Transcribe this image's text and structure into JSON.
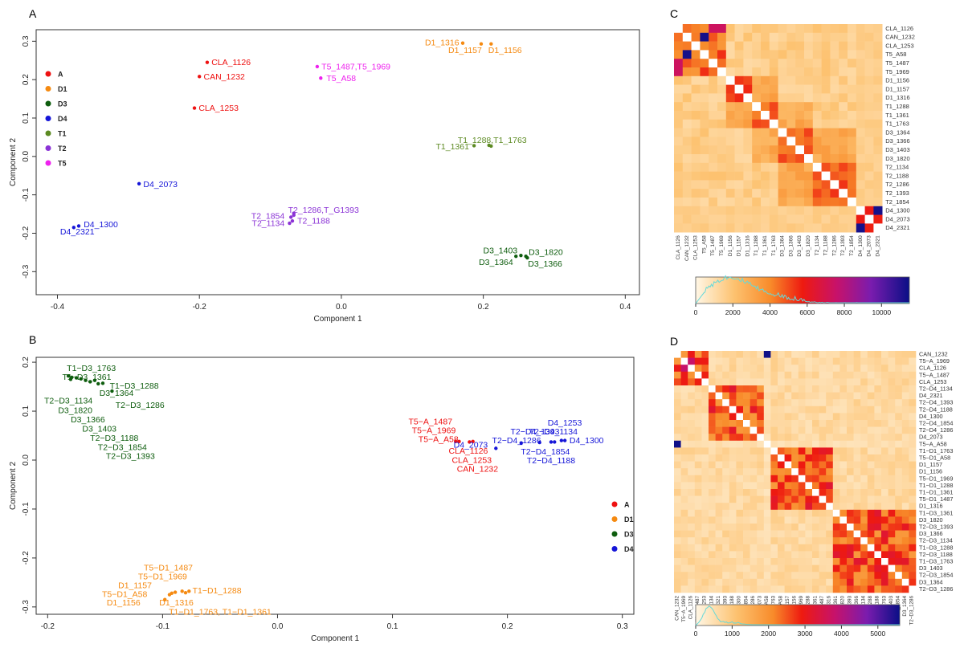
{
  "colors": {
    "A": "#ee1111",
    "D1": "#f58a11",
    "D3": "#0e5d0e",
    "D4": "#1515d8",
    "T1": "#5c8a22",
    "T2": "#8b33d6",
    "T5": "#ee22ee"
  },
  "chart_data": [
    {
      "panel": "A",
      "type": "scatter",
      "xlabel": "Component 1",
      "ylabel": "Component 2",
      "xlim": [
        -0.43,
        0.42
      ],
      "ylim": [
        -0.36,
        0.33
      ],
      "xticks": [
        -0.4,
        -0.2,
        0.0,
        0.2,
        0.4
      ],
      "yticks": [
        -0.3,
        -0.2,
        -0.1,
        0.0,
        0.1,
        0.2,
        0.3
      ],
      "legend": {
        "placement": "top-left",
        "entries": [
          "A",
          "D1",
          "D3",
          "D4",
          "T1",
          "T2",
          "T5"
        ]
      },
      "points": [
        {
          "g": "A",
          "x": -0.189,
          "y": 0.245
        },
        {
          "g": "A",
          "x": -0.2,
          "y": 0.208
        },
        {
          "g": "A",
          "x": -0.207,
          "y": 0.126
        },
        {
          "g": "D1",
          "x": 0.171,
          "y": 0.295
        },
        {
          "g": "D1",
          "x": 0.197,
          "y": 0.293
        },
        {
          "g": "D1",
          "x": 0.211,
          "y": 0.293
        },
        {
          "g": "T5",
          "x": -0.034,
          "y": 0.234
        },
        {
          "g": "T5",
          "x": -0.029,
          "y": 0.204
        },
        {
          "g": "T1",
          "x": 0.187,
          "y": 0.028
        },
        {
          "g": "T1",
          "x": 0.208,
          "y": 0.029
        },
        {
          "g": "T1",
          "x": 0.211,
          "y": 0.027
        },
        {
          "g": "D4",
          "x": -0.285,
          "y": -0.071
        },
        {
          "g": "D4",
          "x": -0.37,
          "y": -0.181
        },
        {
          "g": "D4",
          "x": -0.377,
          "y": -0.185
        },
        {
          "g": "T2",
          "x": -0.067,
          "y": -0.153
        },
        {
          "g": "T2",
          "x": -0.071,
          "y": -0.158
        },
        {
          "g": "T2",
          "x": -0.069,
          "y": -0.168
        },
        {
          "g": "T2",
          "x": -0.073,
          "y": -0.174
        },
        {
          "g": "T2",
          "x": -0.067,
          "y": -0.148
        },
        {
          "g": "D3",
          "x": 0.246,
          "y": -0.26
        },
        {
          "g": "D3",
          "x": 0.253,
          "y": -0.258
        },
        {
          "g": "D3",
          "x": 0.26,
          "y": -0.26
        },
        {
          "g": "D3",
          "x": 0.262,
          "y": -0.264
        }
      ],
      "labels": [
        {
          "g": "A",
          "x": -0.183,
          "y": 0.245,
          "text": "CLA_1126",
          "anchor": "start"
        },
        {
          "g": "A",
          "x": -0.194,
          "y": 0.208,
          "text": "CAN_1232",
          "anchor": "start"
        },
        {
          "g": "A",
          "x": -0.201,
          "y": 0.126,
          "text": "CLA_1253",
          "anchor": "start"
        },
        {
          "g": "D1",
          "x": 0.166,
          "y": 0.297,
          "text": "D1_1316",
          "anchor": "end"
        },
        {
          "g": "D1",
          "x": 0.198,
          "y": 0.277,
          "text": "D1_1157",
          "anchor": "end"
        },
        {
          "g": "D1",
          "x": 0.207,
          "y": 0.277,
          "text": "D1_1156",
          "anchor": "start"
        },
        {
          "g": "T5",
          "x": -0.028,
          "y": 0.234,
          "text": "T5_1487,T5_1969",
          "anchor": "start"
        },
        {
          "g": "T5",
          "x": -0.021,
          "y": 0.204,
          "text": "T5_A58",
          "anchor": "start"
        },
        {
          "g": "T1",
          "x": 0.164,
          "y": 0.043,
          "text": "T1_1288,T1_1763",
          "anchor": "start"
        },
        {
          "g": "T1",
          "x": 0.18,
          "y": 0.026,
          "text": "T1_1361",
          "anchor": "end"
        },
        {
          "g": "D4",
          "x": -0.279,
          "y": -0.072,
          "text": "D4_2073",
          "anchor": "start"
        },
        {
          "g": "D4",
          "x": -0.363,
          "y": -0.177,
          "text": "D4_1300",
          "anchor": "start"
        },
        {
          "g": "D4",
          "x": -0.372,
          "y": -0.196,
          "text": "D4_2321",
          "anchor": "middle"
        },
        {
          "g": "T2",
          "x": -0.075,
          "y": -0.139,
          "text": "T2_1286,T_G1393",
          "anchor": "start"
        },
        {
          "g": "T2",
          "x": -0.08,
          "y": -0.155,
          "text": "T2_1854",
          "anchor": "end"
        },
        {
          "g": "T2",
          "x": -0.08,
          "y": -0.174,
          "text": "T2_1134",
          "anchor": "end"
        },
        {
          "g": "T2",
          "x": -0.062,
          "y": -0.168,
          "text": "T2_1188",
          "anchor": "start"
        },
        {
          "g": "D3",
          "x": 0.224,
          "y": -0.245,
          "text": "D3_1403",
          "anchor": "middle"
        },
        {
          "g": "D3",
          "x": 0.264,
          "y": -0.249,
          "text": "D3_1820",
          "anchor": "start"
        },
        {
          "g": "D3",
          "x": 0.242,
          "y": -0.275,
          "text": "D3_1364",
          "anchor": "end"
        },
        {
          "g": "D3",
          "x": 0.263,
          "y": -0.28,
          "text": "D3_1366",
          "anchor": "start"
        }
      ]
    },
    {
      "panel": "B",
      "type": "scatter",
      "xlabel": "Component 1",
      "ylabel": "Component 2",
      "xlim": [
        -0.21,
        0.31
      ],
      "ylim": [
        -0.315,
        0.21
      ],
      "xticks": [
        -0.2,
        -0.1,
        0.0,
        0.1,
        0.2,
        0.3
      ],
      "yticks": [
        -0.3,
        -0.2,
        -0.1,
        0.0,
        0.1,
        0.2
      ],
      "legend": {
        "placement": "bottom-right",
        "entries": [
          "A",
          "D1",
          "D3",
          "D4"
        ]
      },
      "points": [
        {
          "g": "D3",
          "x": -0.182,
          "y": 0.172
        },
        {
          "g": "D3",
          "x": -0.179,
          "y": 0.169
        },
        {
          "g": "D3",
          "x": -0.175,
          "y": 0.168
        },
        {
          "g": "D3",
          "x": -0.171,
          "y": 0.166
        },
        {
          "g": "D3",
          "x": -0.167,
          "y": 0.163
        },
        {
          "g": "D3",
          "x": -0.163,
          "y": 0.16
        },
        {
          "g": "D3",
          "x": -0.159,
          "y": 0.163
        },
        {
          "g": "D3",
          "x": -0.156,
          "y": 0.156
        },
        {
          "g": "D3",
          "x": -0.152,
          "y": 0.157
        },
        {
          "g": "D3",
          "x": -0.18,
          "y": 0.165
        },
        {
          "g": "D3",
          "x": -0.144,
          "y": 0.141
        },
        {
          "g": "A",
          "x": 0.155,
          "y": 0.038
        },
        {
          "g": "A",
          "x": 0.158,
          "y": 0.038
        },
        {
          "g": "A",
          "x": 0.167,
          "y": 0.037
        },
        {
          "g": "A",
          "x": 0.17,
          "y": 0.038
        },
        {
          "g": "D4",
          "x": 0.19,
          "y": 0.024
        },
        {
          "g": "D4",
          "x": 0.212,
          "y": 0.035
        },
        {
          "g": "D4",
          "x": 0.228,
          "y": 0.036
        },
        {
          "g": "D4",
          "x": 0.238,
          "y": 0.037
        },
        {
          "g": "D4",
          "x": 0.241,
          "y": 0.037
        },
        {
          "g": "D4",
          "x": 0.247,
          "y": 0.04
        },
        {
          "g": "D4",
          "x": 0.25,
          "y": 0.04
        },
        {
          "g": "D1",
          "x": -0.098,
          "y": -0.285
        },
        {
          "g": "D1",
          "x": -0.094,
          "y": -0.275
        },
        {
          "g": "D1",
          "x": -0.092,
          "y": -0.272
        },
        {
          "g": "D1",
          "x": -0.089,
          "y": -0.27
        },
        {
          "g": "D1",
          "x": -0.083,
          "y": -0.268
        },
        {
          "g": "D1",
          "x": -0.08,
          "y": -0.271
        },
        {
          "g": "D1",
          "x": -0.077,
          "y": -0.268
        }
      ],
      "labels": [
        {
          "g": "D3",
          "x": -0.162,
          "y": 0.188,
          "text": "T1−D3_1763",
          "anchor": "middle"
        },
        {
          "g": "D3",
          "x": -0.166,
          "y": 0.17,
          "text": "T1−D3_1361",
          "anchor": "middle"
        },
        {
          "g": "D3",
          "x": -0.146,
          "y": 0.152,
          "text": "T1−D3_1288",
          "anchor": "start"
        },
        {
          "g": "D3",
          "x": -0.155,
          "y": 0.137,
          "text": "D3_1364",
          "anchor": "start"
        },
        {
          "g": "D3",
          "x": -0.182,
          "y": 0.121,
          "text": "T2−D3_1134",
          "anchor": "middle"
        },
        {
          "g": "D3",
          "x": -0.141,
          "y": 0.112,
          "text": "T2−D3_1286",
          "anchor": "start"
        },
        {
          "g": "D3",
          "x": -0.176,
          "y": 0.102,
          "text": "D3_1820",
          "anchor": "middle"
        },
        {
          "g": "D3",
          "x": -0.165,
          "y": 0.083,
          "text": "D3_1366",
          "anchor": "middle"
        },
        {
          "g": "D3",
          "x": -0.155,
          "y": 0.064,
          "text": "D3_1403",
          "anchor": "middle"
        },
        {
          "g": "D3",
          "x": -0.142,
          "y": 0.045,
          "text": "T2−D3_1188",
          "anchor": "middle"
        },
        {
          "g": "D3",
          "x": -0.135,
          "y": 0.026,
          "text": "T2−D3_1854",
          "anchor": "middle"
        },
        {
          "g": "D3",
          "x": -0.128,
          "y": 0.008,
          "text": "T2−D3_1393",
          "anchor": "middle"
        },
        {
          "g": "A",
          "x": 0.133,
          "y": 0.079,
          "text": "T5−A_1487",
          "anchor": "middle"
        },
        {
          "g": "A",
          "x": 0.136,
          "y": 0.061,
          "text": "T5−A_1969",
          "anchor": "middle"
        },
        {
          "g": "A",
          "x": 0.14,
          "y": 0.043,
          "text": "T5−A_A58",
          "anchor": "middle"
        },
        {
          "g": "A",
          "x": 0.166,
          "y": 0.019,
          "text": "CLA_1126",
          "anchor": "middle"
        },
        {
          "g": "A",
          "x": 0.169,
          "y": 0.0,
          "text": "CLA_1253",
          "anchor": "middle"
        },
        {
          "g": "A",
          "x": 0.174,
          "y": -0.018,
          "text": "CAN_1232",
          "anchor": "middle"
        },
        {
          "g": "D4",
          "x": 0.235,
          "y": 0.076,
          "text": "D4_1253",
          "anchor": "start"
        },
        {
          "g": "D4",
          "x": 0.24,
          "y": 0.058,
          "text": "T2−D4_1134",
          "anchor": "middle"
        },
        {
          "g": "D4",
          "x": 0.224,
          "y": 0.058,
          "text": "T2−D4_1393",
          "anchor": "middle"
        },
        {
          "g": "D4",
          "x": 0.208,
          "y": 0.04,
          "text": "T2−D4_1286",
          "anchor": "middle"
        },
        {
          "g": "D4",
          "x": 0.254,
          "y": 0.04,
          "text": "D4_1300",
          "anchor": "start"
        },
        {
          "g": "D4",
          "x": 0.183,
          "y": 0.031,
          "text": "D4_2073",
          "anchor": "end"
        },
        {
          "g": "D4",
          "x": 0.233,
          "y": 0.017,
          "text": "T2−D4_1854",
          "anchor": "middle"
        },
        {
          "g": "D4",
          "x": 0.238,
          "y": -0.001,
          "text": "T2−D4_1188",
          "anchor": "middle"
        },
        {
          "g": "D1",
          "x": -0.095,
          "y": -0.22,
          "text": "T5−D1_1487",
          "anchor": "middle"
        },
        {
          "g": "D1",
          "x": -0.1,
          "y": -0.238,
          "text": "T5−D1_1969",
          "anchor": "middle"
        },
        {
          "g": "D1",
          "x": -0.124,
          "y": -0.256,
          "text": "D1_1157",
          "anchor": "middle"
        },
        {
          "g": "D1",
          "x": -0.133,
          "y": -0.274,
          "text": "T5−D1_A58",
          "anchor": "middle"
        },
        {
          "g": "D1",
          "x": -0.074,
          "y": -0.267,
          "text": "T1−D1_1288",
          "anchor": "start"
        },
        {
          "g": "D1",
          "x": -0.134,
          "y": -0.291,
          "text": "D1_1156",
          "anchor": "middle"
        },
        {
          "g": "D1",
          "x": -0.088,
          "y": -0.291,
          "text": "D1_1316",
          "anchor": "middle"
        },
        {
          "g": "D1",
          "x": -0.05,
          "y": -0.31,
          "text": "T1−D1_1763, T1−D1_1361",
          "anchor": "middle"
        }
      ]
    },
    {
      "panel": "C",
      "type": "heatmap",
      "rows": [
        "CLA_1126",
        "CAN_1232",
        "CLA_1253",
        "T5_A58",
        "T5_1487",
        "T5_1969",
        "D1_1156",
        "D1_1157",
        "D1_1316",
        "T1_1288",
        "T1_1361",
        "T1_1763",
        "D3_1364",
        "D3_1366",
        "D3_1403",
        "D3_1820",
        "T2_1134",
        "T2_1188",
        "T2_1286",
        "T2_1393",
        "T2_1854",
        "D4_1300",
        "D4_2073",
        "D4_2321"
      ],
      "groups": [
        3,
        3,
        3,
        3,
        3,
        3,
        3,
        3,
        3,
        3,
        3,
        3,
        4,
        4,
        4,
        4,
        5,
        5,
        5,
        5,
        5,
        6,
        6,
        6
      ],
      "group_labels_order": "A,T5,D1,T1,D3,T2,D4",
      "colorbar_ticks": [
        0,
        2000,
        4000,
        6000,
        8000,
        10000
      ],
      "colorbar_max": 11500
    },
    {
      "panel": "D",
      "type": "heatmap",
      "rows": [
        "CAN_1232",
        "T5−A_1969",
        "CLA_1126",
        "T5−A_1487",
        "CLA_1253",
        "T2−D4_1134",
        "D4_2321",
        "T2−D4_1393",
        "T2−D4_1188",
        "D4_1300",
        "T2−D4_1854",
        "T2−D4_1286",
        "D4_2073",
        "T5−A_A58",
        "T1−D1_1763",
        "T5−D1_A58",
        "D1_1157",
        "D1_1156",
        "T5−D1_1969",
        "T1−D1_1288",
        "T1−D1_1361",
        "T5−D1_1487",
        "D1_1316",
        "T1−D3_1361",
        "D3_1820",
        "T2−D3_1393",
        "D3_1366",
        "T2−D3_1134",
        "T1−D3_1288",
        "T2−D3_1188",
        "T1−D3_1763",
        "D3_1403",
        "T2−D3_1854",
        "D3_1364",
        "T2−D3_1286"
      ],
      "blocks": [
        [
          0,
          5
        ],
        [
          5,
          13
        ],
        [
          14,
          23
        ],
        [
          23,
          35
        ]
      ],
      "colorbar_ticks": [
        0,
        1000,
        2000,
        3000,
        4000,
        5000
      ],
      "colorbar_max": 5600
    }
  ],
  "panel_letters": {
    "A": "A",
    "B": "B",
    "C": "C",
    "D": "D"
  }
}
